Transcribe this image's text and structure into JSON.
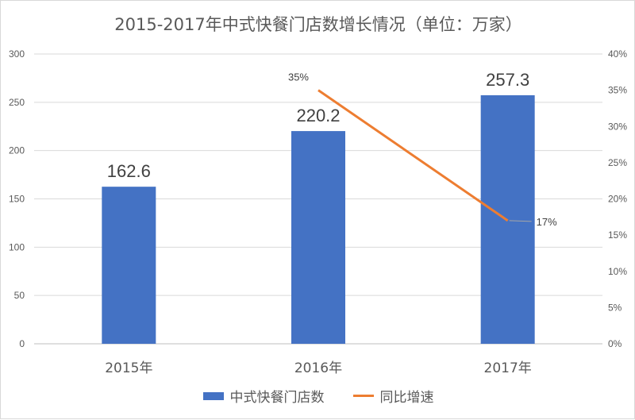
{
  "chart_data": {
    "type": "bar",
    "title": "2015-2017年中式快餐门店数增长情况（单位：万家）",
    "categories": [
      "2015年",
      "2016年",
      "2017年"
    ],
    "series": [
      {
        "name": "中式快餐门店数",
        "type": "bar",
        "axis": "left",
        "color": "#4472c4",
        "values": [
          162.6,
          220.2,
          257.3
        ],
        "data_labels": [
          "162.6",
          "220.2",
          "257.3"
        ]
      },
      {
        "name": "同比增速",
        "type": "line",
        "axis": "right",
        "color": "#ed7d31",
        "values": [
          null,
          35,
          17
        ],
        "data_labels": [
          "",
          "35%",
          "17%"
        ]
      }
    ],
    "y_left": {
      "range": [
        0,
        300
      ],
      "ticks": [
        "0",
        "50",
        "100",
        "150",
        "200",
        "250",
        "300"
      ]
    },
    "y_right": {
      "range": [
        0,
        40
      ],
      "ticks": [
        "0%",
        "5%",
        "10%",
        "15%",
        "20%",
        "25%",
        "30%",
        "35%",
        "40%"
      ]
    },
    "grid": true,
    "legend_position": "bottom"
  }
}
